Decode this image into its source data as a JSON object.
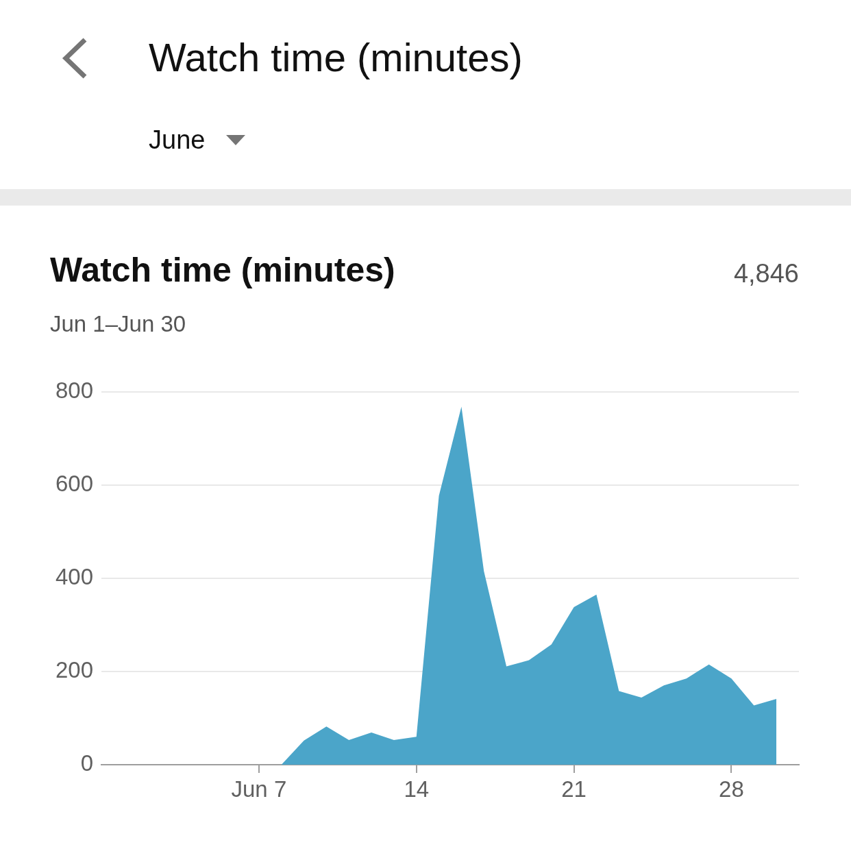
{
  "chart_data": {
    "type": "area",
    "title": "Watch time (minutes)",
    "subtitle": "Jun 1–Jun 30",
    "annotations": [
      "Watch time (minutes)",
      "June",
      "4,846"
    ],
    "x": [
      "--06-01",
      "--06-02",
      "--06-03",
      "--06-04",
      "--06-05",
      "--06-06",
      "--06-07",
      "--06-08",
      "--06-09",
      "--06-10",
      "--06-11",
      "--06-12",
      "--06-13",
      "--06-14",
      "--06-15",
      "--06-16",
      "--06-17",
      "--06-18",
      "--06-19",
      "--06-20",
      "--06-21",
      "--06-22",
      "--06-23",
      "--06-24",
      "--06-25",
      "--06-26",
      "--06-27",
      "--06-28",
      "--06-29",
      "--06-30"
    ],
    "series": [
      {
        "color": "#4ba5c9",
        "values": [
          0,
          0,
          0,
          0,
          0,
          0,
          0,
          0,
          52,
          82,
          53,
          69,
          53,
          60,
          577,
          768,
          415,
          211,
          224,
          258,
          338,
          365,
          158,
          144,
          170,
          185,
          215,
          185,
          127,
          141
        ]
      }
    ],
    "xlim": [
      "--05-31",
      "--07-01"
    ],
    "xticks": [
      {
        "value": "--06-07",
        "label": "Jun 7"
      },
      {
        "value": "--06-14",
        "label": "14"
      },
      {
        "value": "--06-21",
        "label": "21"
      },
      {
        "value": "--06-28",
        "label": "28"
      }
    ],
    "ylim": [
      0,
      800
    ],
    "yticks": [
      0,
      200,
      400,
      600,
      800
    ],
    "grid": "y",
    "legend": false
  }
}
